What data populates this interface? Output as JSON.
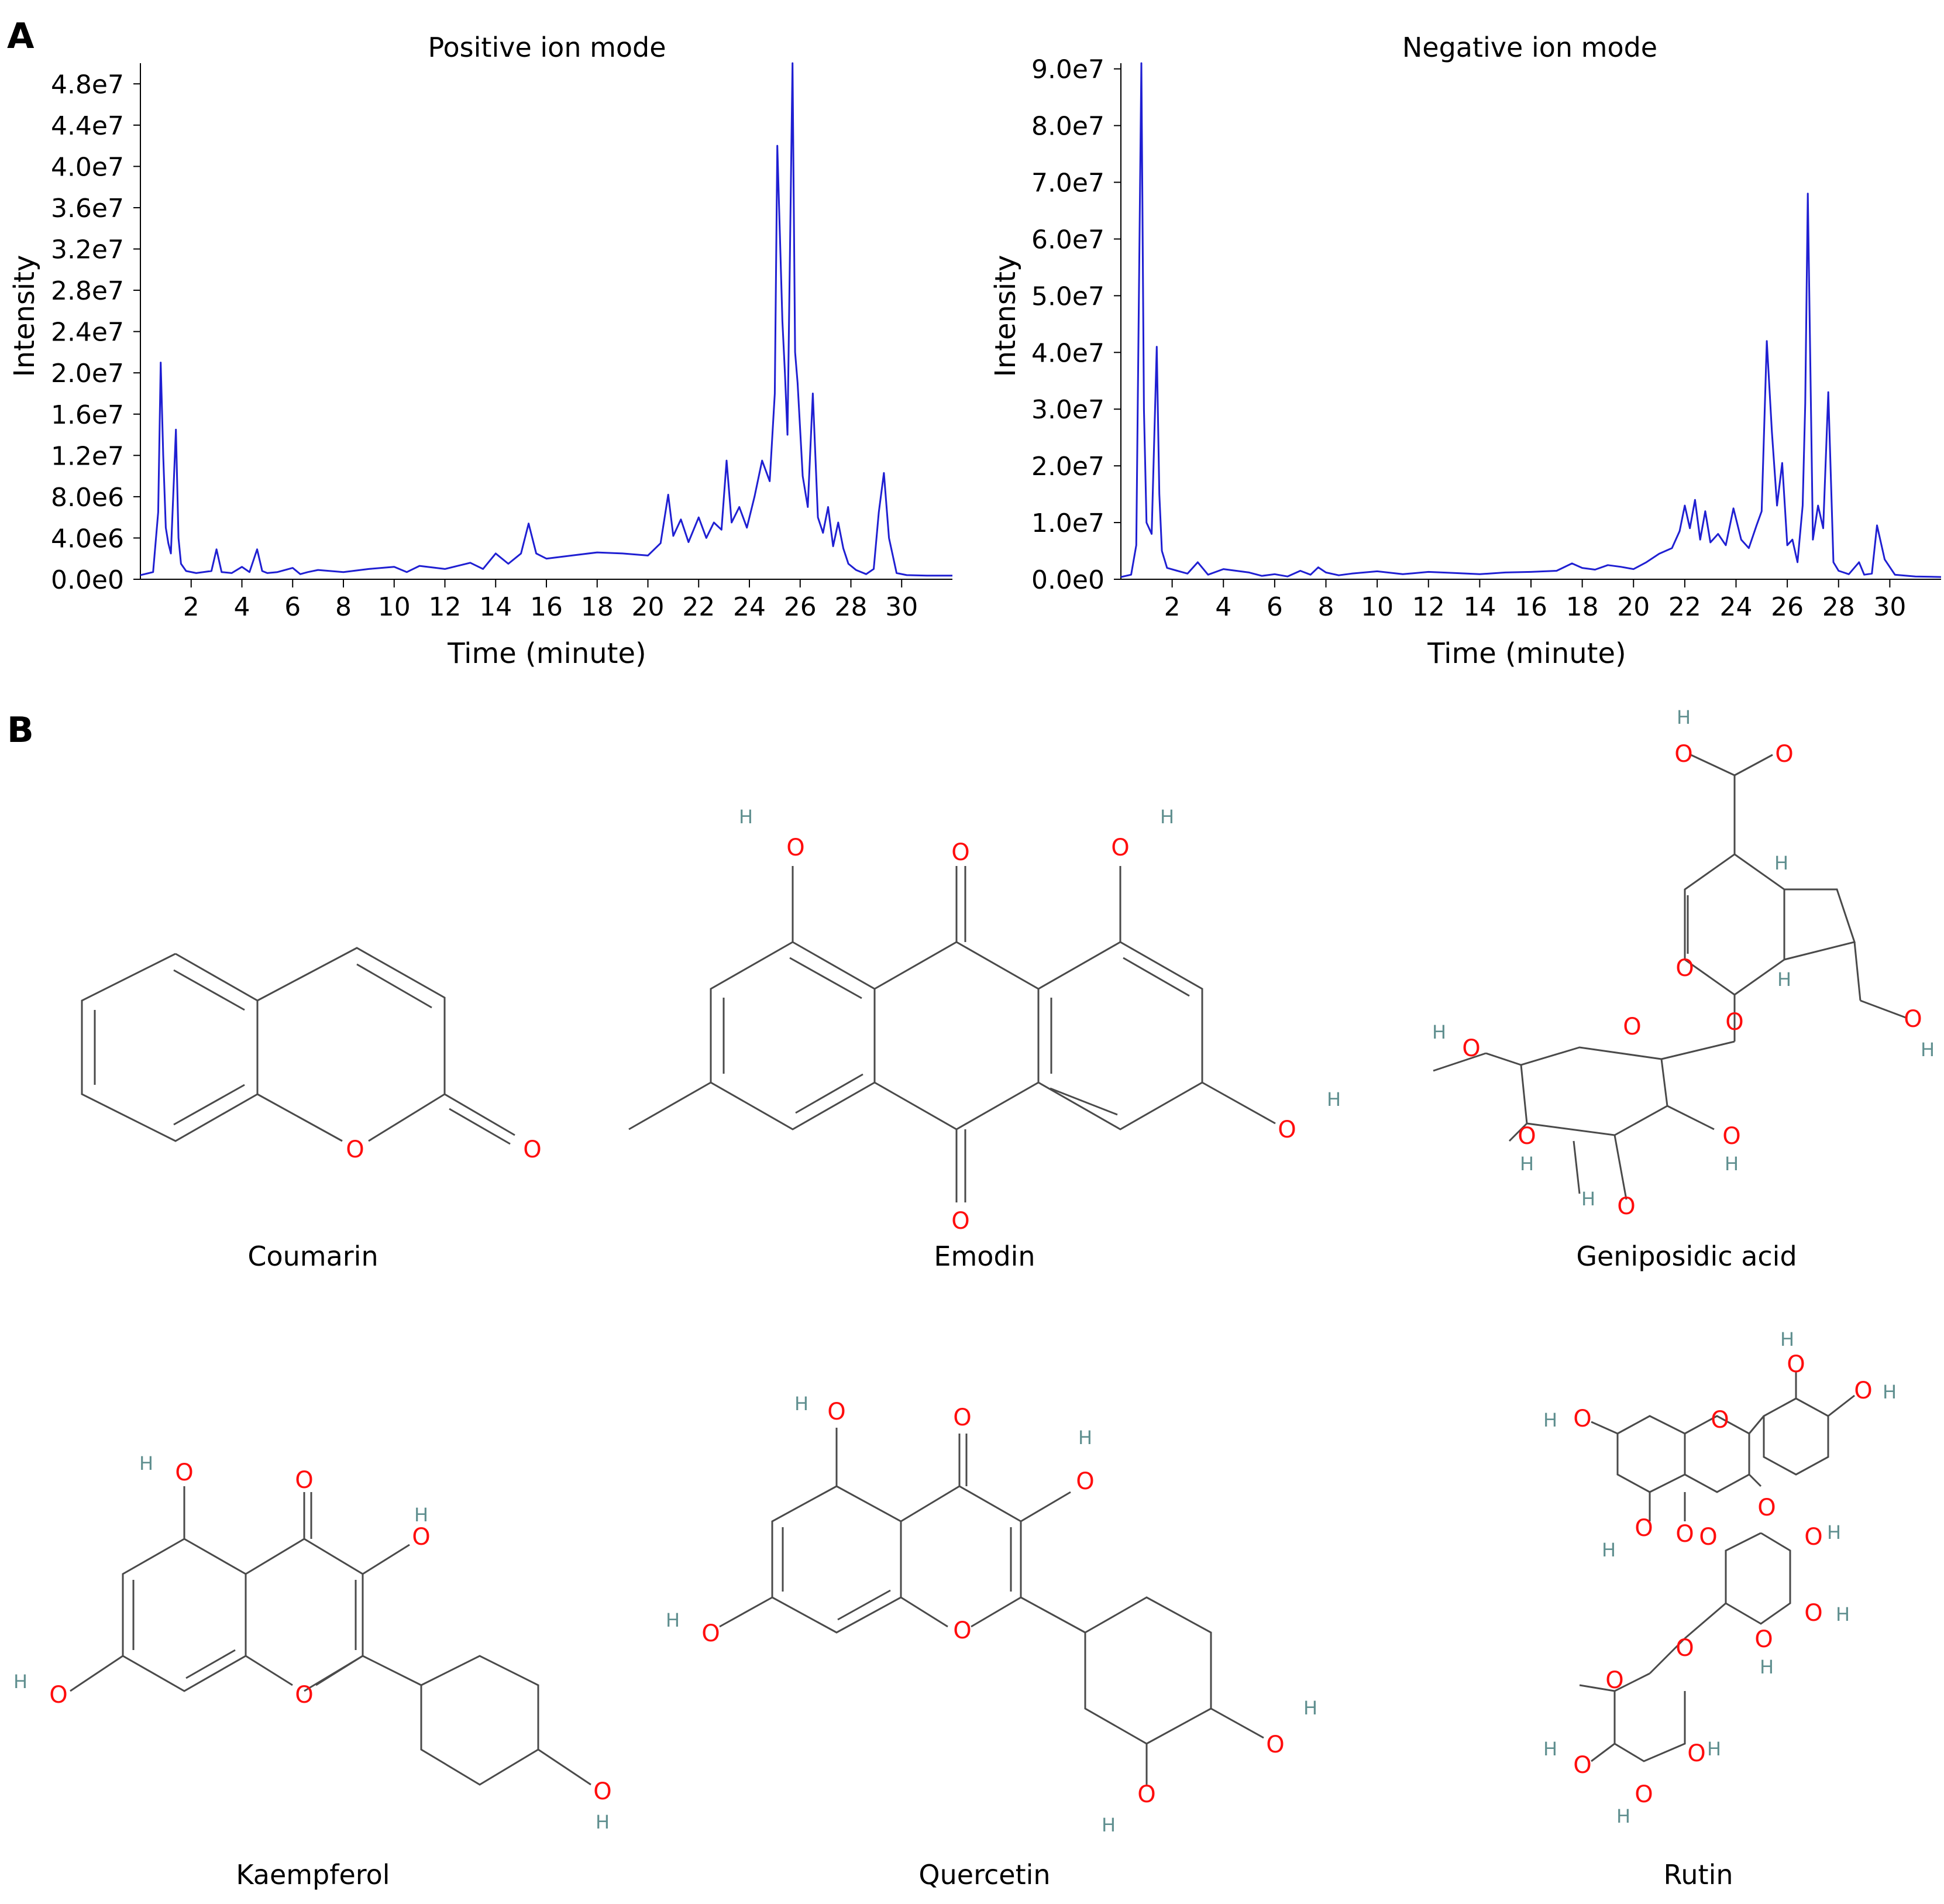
{
  "panels": {
    "a": "A",
    "b": "B"
  },
  "chart_data": [
    {
      "type": "line",
      "title": "Positive ion mode",
      "xlabel": "Time (minute)",
      "ylabel": "Intensity",
      "xticks": [
        "2",
        "4",
        "6",
        "8",
        "10",
        "12",
        "14",
        "16",
        "18",
        "20",
        "22",
        "24",
        "26",
        "28",
        "30"
      ],
      "yticks": [
        "0.0e0",
        "4.0e6",
        "8.0e6",
        "1.2e7",
        "1.6e7",
        "2.0e7",
        "2.4e7",
        "2.8e7",
        "3.2e7",
        "3.6e7",
        "4.0e7",
        "4.4e7",
        "4.8e7"
      ],
      "xlim": [
        0,
        32
      ],
      "ylim": [
        0,
        50000000
      ],
      "grid": false,
      "series": [
        {
          "color": "#1f1fd2",
          "x": [
            0,
            0.5,
            0.7,
            0.8,
            0.9,
            1.0,
            1.1,
            1.2,
            1.4,
            1.5,
            1.6,
            1.8,
            2.2,
            2.8,
            3.0,
            3.2,
            3.6,
            4.0,
            4.3,
            4.6,
            4.8,
            5.0,
            5.4,
            6.0,
            6.3,
            6.6,
            7.0,
            8.0,
            9.0,
            10.0,
            10.5,
            11.0,
            12.0,
            13.0,
            13.5,
            14.0,
            14.5,
            15.0,
            15.3,
            15.6,
            16.0,
            17.0,
            18.0,
            19.0,
            20.0,
            20.5,
            20.8,
            21.0,
            21.3,
            21.6,
            22.0,
            22.3,
            22.6,
            22.9,
            23.1,
            23.3,
            23.6,
            23.9,
            24.2,
            24.5,
            24.8,
            25.0,
            25.1,
            25.3,
            25.4,
            25.5,
            25.7,
            25.8,
            25.9,
            26.1,
            26.3,
            26.5,
            26.7,
            26.9,
            27.1,
            27.3,
            27.5,
            27.7,
            27.9,
            28.2,
            28.6,
            28.9,
            29.1,
            29.3,
            29.5,
            29.8,
            30.2,
            31.0,
            32.0
          ],
          "y": [
            400000,
            700000,
            6500000,
            21000000,
            12000000,
            5000000,
            3500000,
            2500000,
            14500000,
            4000000,
            1500000,
            800000,
            600000,
            800000,
            2900000,
            700000,
            600000,
            1200000,
            700000,
            2900000,
            800000,
            600000,
            700000,
            1100000,
            500000,
            700000,
            900000,
            700000,
            1000000,
            1200000,
            700000,
            1300000,
            1000000,
            1600000,
            1000000,
            2500000,
            1500000,
            2500000,
            5400000,
            2500000,
            2000000,
            2300000,
            2600000,
            2500000,
            2300000,
            3500000,
            8200000,
            4200000,
            5800000,
            3600000,
            6000000,
            4000000,
            5500000,
            4800000,
            11500000,
            5500000,
            7000000,
            5000000,
            8000000,
            11500000,
            9500000,
            18000000,
            42000000,
            25000000,
            20000000,
            14000000,
            50000000,
            22000000,
            19000000,
            10000000,
            7000000,
            18000000,
            6000000,
            4500000,
            7000000,
            3200000,
            5500000,
            3000000,
            1500000,
            900000,
            500000,
            1000000,
            6500000,
            10300000,
            4000000,
            600000,
            400000,
            350000,
            350000
          ]
        }
      ]
    },
    {
      "type": "line",
      "title": "Negative ion mode",
      "xlabel": "Time (minute)",
      "ylabel": "Intensity",
      "xticks": [
        "2",
        "4",
        "6",
        "8",
        "10",
        "12",
        "14",
        "16",
        "18",
        "20",
        "22",
        "24",
        "26",
        "28",
        "30"
      ],
      "yticks": [
        "0.0e0",
        "1.0e7",
        "2.0e7",
        "3.0e7",
        "4.0e7",
        "5.0e7",
        "6.0e7",
        "7.0e7",
        "8.0e7",
        "9.0e7"
      ],
      "xlim": [
        0,
        32
      ],
      "ylim": [
        0,
        91000000
      ],
      "grid": false,
      "series": [
        {
          "color": "#1f1fd2",
          "x": [
            0,
            0.4,
            0.6,
            0.8,
            0.9,
            1.0,
            1.2,
            1.4,
            1.5,
            1.6,
            1.8,
            2.2,
            2.6,
            3.0,
            3.4,
            4.0,
            5.0,
            5.5,
            6.0,
            6.5,
            7.0,
            7.4,
            7.7,
            8.0,
            8.5,
            9.0,
            10.0,
            11.0,
            12.0,
            13.0,
            14.0,
            15.0,
            16.0,
            17.0,
            17.6,
            18.0,
            18.5,
            19.0,
            19.5,
            20.0,
            20.5,
            21.0,
            21.5,
            21.8,
            22.0,
            22.2,
            22.4,
            22.6,
            22.8,
            23.0,
            23.3,
            23.6,
            23.9,
            24.2,
            24.5,
            24.8,
            25.0,
            25.2,
            25.4,
            25.6,
            25.8,
            26.0,
            26.2,
            26.4,
            26.6,
            26.7,
            26.8,
            27.0,
            27.2,
            27.4,
            27.6,
            27.8,
            28.0,
            28.4,
            28.8,
            29.0,
            29.3,
            29.5,
            29.8,
            30.2,
            31.0,
            32.0
          ],
          "y": [
            400000,
            800000,
            6000000,
            91000000,
            30000000,
            10000000,
            8000000,
            41000000,
            15000000,
            5000000,
            2000000,
            1500000,
            1000000,
            3000000,
            800000,
            1800000,
            1200000,
            600000,
            900000,
            500000,
            1500000,
            800000,
            2100000,
            1200000,
            700000,
            1000000,
            1400000,
            900000,
            1300000,
            1100000,
            900000,
            1200000,
            1300000,
            1500000,
            2800000,
            2000000,
            1700000,
            2500000,
            2200000,
            1800000,
            3000000,
            4500000,
            5500000,
            8500000,
            13000000,
            9000000,
            14000000,
            7000000,
            12000000,
            6500000,
            8000000,
            6000000,
            12500000,
            7000000,
            5500000,
            9500000,
            12000000,
            42000000,
            26000000,
            13000000,
            20500000,
            6000000,
            7000000,
            3000000,
            13000000,
            31000000,
            68000000,
            7000000,
            13000000,
            9000000,
            33000000,
            3000000,
            1500000,
            900000,
            3000000,
            800000,
            1000000,
            9500000,
            3500000,
            800000,
            500000,
            400000
          ]
        }
      ]
    }
  ],
  "molecules": [
    {
      "name": "Coumarin"
    },
    {
      "name": "Emodin"
    },
    {
      "name": "Geniposidic acid"
    },
    {
      "name": "Kaempferol"
    },
    {
      "name": "Quercetin"
    },
    {
      "name": "Rutin"
    }
  ],
  "atom_labels": {
    "oxygen": "O",
    "hydrogen": "H"
  }
}
